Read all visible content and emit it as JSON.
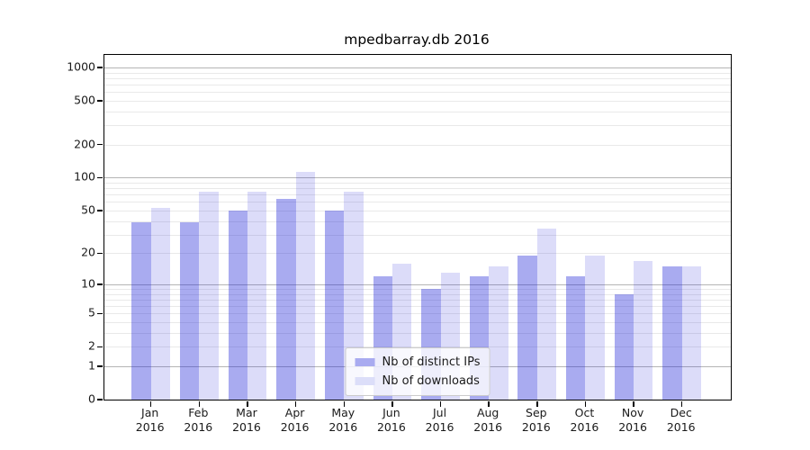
{
  "title": "mpedbarray.db 2016",
  "chart_data": {
    "type": "bar",
    "title": "mpedbarray.db 2016",
    "scale": "log10(value+1)",
    "categories": [
      "Jan",
      "Feb",
      "Mar",
      "Apr",
      "May",
      "Jun",
      "Jul",
      "Aug",
      "Sep",
      "Oct",
      "Nov",
      "Dec"
    ],
    "year_label": "2016",
    "series": [
      {
        "name": "Nb of distinct IPs",
        "swatch": "#a9abf0",
        "fill": "rgba(30,35,215,0.38)",
        "values": [
          39,
          39,
          50,
          64,
          50,
          12,
          9,
          12,
          19,
          12,
          8,
          15
        ]
      },
      {
        "name": "Nb of downloads",
        "swatch": "#dcdef9",
        "fill": "rgba(30,35,215,0.155)",
        "values": [
          53,
          74,
          75,
          113,
          75,
          16,
          13,
          15,
          34,
          19,
          17,
          15
        ]
      }
    ],
    "y_ticks": [
      0,
      1,
      2,
      5,
      10,
      20,
      50,
      100,
      200,
      500,
      1000
    ],
    "ylim": [
      0,
      1300
    ],
    "grid": "on",
    "legend_position": "lower center"
  },
  "legend": {
    "items": [
      "Nb of distinct IPs",
      "Nb of downloads"
    ]
  },
  "colors": {
    "bar_dark": "#a9abf0",
    "bar_light": "#dcdef9",
    "grid_major": "#b5b5b5",
    "grid_minor": "#e9e9e9",
    "spine": "#000000",
    "text": "#1a1a1a",
    "background": "#ffffff"
  }
}
